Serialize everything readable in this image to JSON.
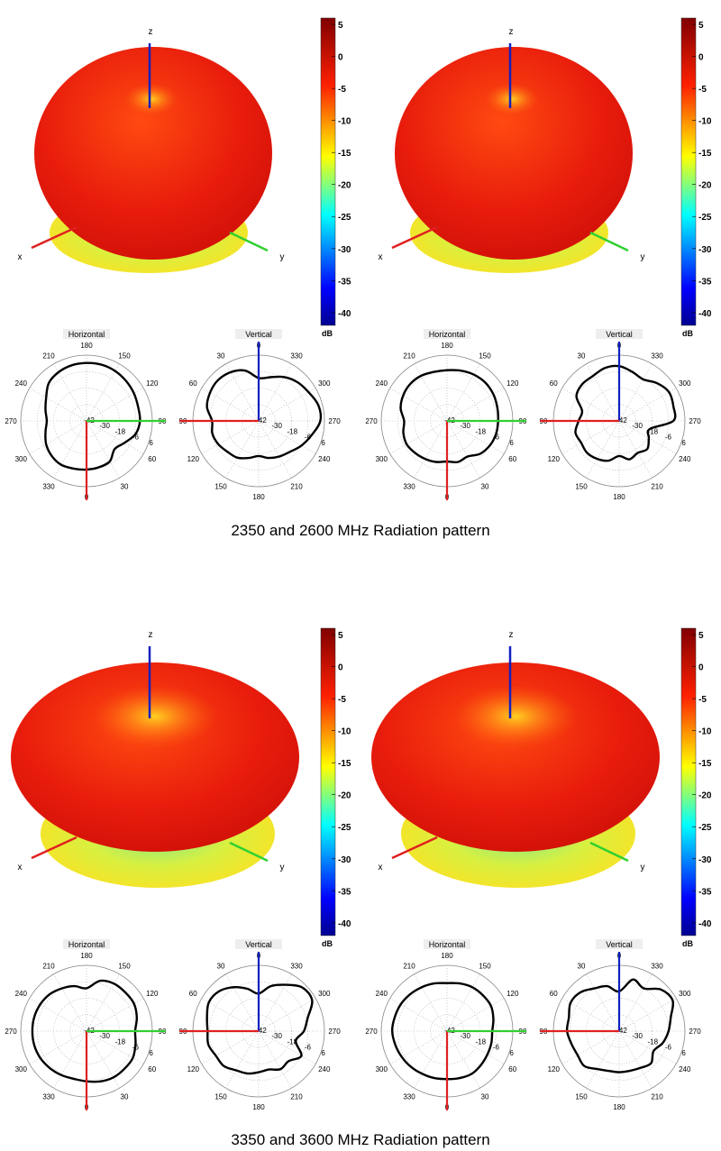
{
  "captions": [
    "2350 and 2600 MHz Radiation pattern",
    "3350 and 3600 MHz Radiation pattern"
  ],
  "colors": {
    "x_axis": "#e02020",
    "y_axis": "#30d030",
    "z_axis": "#1020c0",
    "curve": "#000000"
  },
  "chart_data": [
    {
      "type": "polar-radiation-pattern",
      "frequency_mhz": 2350,
      "axis_labels_3d": {
        "x": "x",
        "y": "y",
        "z": "z"
      },
      "colorbar": {
        "unit": "dB",
        "ticks": [
          "5",
          "0",
          "-5",
          "-10",
          "-15",
          "-20",
          "-25",
          "-30",
          "-35",
          "-40"
        ],
        "range": [
          -42,
          6
        ],
        "colormap": "jet"
      },
      "horizontal": {
        "title": "Horizontal",
        "angle_labels": [
          "180",
          "150",
          "120",
          "90",
          "60",
          "30",
          "0",
          "330",
          "300",
          "270",
          "240",
          "210"
        ],
        "radial_labels": [
          "-42",
          "-30",
          "-18",
          "-6",
          "6"
        ],
        "angles_deg_step": 15,
        "db": [
          -6.5,
          -7,
          -8,
          -13,
          -10,
          -5,
          -3,
          -3,
          -2,
          -1,
          0,
          0.5,
          0.3,
          0,
          -1,
          -3,
          -8,
          -11,
          -13,
          -11,
          -8,
          -6,
          -5,
          -6
        ]
      },
      "vertical": {
        "title": "Vertical",
        "angle_labels": [
          "0",
          "330",
          "300",
          "270",
          "240",
          "210",
          "180",
          "150",
          "120",
          "90",
          "60",
          "30"
        ],
        "radial_labels": [
          "-42",
          "-30",
          "-18",
          "-6",
          "6"
        ],
        "angles_deg_step": 15,
        "db": [
          -10.7,
          -4,
          -1,
          0,
          -1,
          -3,
          -8,
          -7,
          -8,
          -10,
          -11,
          -14,
          -16.4,
          -14,
          -12,
          -10,
          -6,
          -2,
          3,
          3,
          0,
          -2,
          -5,
          -9
        ]
      }
    },
    {
      "type": "polar-radiation-pattern",
      "frequency_mhz": 2600,
      "axis_labels_3d": {
        "x": "x",
        "y": "y",
        "z": "z"
      },
      "colorbar": {
        "unit": "dB",
        "ticks": [
          "5",
          "0",
          "-5",
          "-10",
          "-15",
          "-20",
          "-25",
          "-30",
          "-35",
          "-40"
        ],
        "range": [
          -42,
          6
        ],
        "colormap": "jet"
      },
      "horizontal": {
        "title": "Horizontal",
        "angle_labels": [
          "180",
          "150",
          "120",
          "90",
          "60",
          "30",
          "0",
          "330",
          "300",
          "270",
          "240",
          "210"
        ],
        "radial_labels": [
          "-42",
          "-30",
          "-18",
          "-6",
          "6"
        ],
        "angles_deg_step": 15,
        "db": [
          -12.4,
          -11,
          -12,
          -8,
          -6,
          -5,
          -4.7,
          -4,
          -3,
          -2.5,
          -3,
          -4,
          -5,
          -5,
          -4,
          -4,
          -5,
          -7,
          -10.7,
          -9,
          -8,
          -9,
          -10,
          -11
        ]
      },
      "vertical": {
        "title": "Vertical",
        "angle_labels": [
          "0",
          "330",
          "300",
          "270",
          "240",
          "210",
          "180",
          "150",
          "120",
          "90",
          "60",
          "30"
        ],
        "radial_labels": [
          "-42",
          "-30",
          "-18",
          "-6",
          "6"
        ],
        "angles_deg_step": 15,
        "db": [
          -2,
          -2,
          -4,
          -4,
          -6,
          -14,
          -12.4,
          -9,
          -10,
          -9,
          -10,
          -12,
          -16.4,
          -13,
          -15,
          -13,
          -17,
          -19,
          -2.5,
          -1,
          0,
          -3,
          -7,
          -5
        ]
      }
    },
    {
      "type": "polar-radiation-pattern",
      "frequency_mhz": 3350,
      "axis_labels_3d": {
        "x": "x",
        "y": "y",
        "z": "z"
      },
      "colorbar": {
        "unit": "dB",
        "ticks": [
          "5",
          "0",
          "-5",
          "-10",
          "-15",
          "-20",
          "-25",
          "-30",
          "-35",
          "-40"
        ],
        "range": [
          -42,
          6
        ],
        "colormap": "jet"
      },
      "horizontal": {
        "title": "Horizontal",
        "angle_labels": [
          "180",
          "150",
          "120",
          "90",
          "60",
          "30",
          "0",
          "330",
          "300",
          "270",
          "240",
          "210"
        ],
        "radial_labels": [
          "-42",
          "-30",
          "-18",
          "-6",
          "6"
        ],
        "angles_deg_step": 15,
        "db": [
          -5.4,
          -4,
          -3,
          -3,
          -3,
          -5,
          -6.5,
          -4,
          -2,
          -2,
          -2,
          -4,
          -10.7,
          -8,
          -6,
          -4,
          -3,
          -2.5,
          -2.5,
          -2.5,
          -3,
          -4,
          -5,
          -6
        ]
      },
      "vertical": {
        "title": "Vertical",
        "angle_labels": [
          "0",
          "330",
          "300",
          "270",
          "240",
          "210",
          "180",
          "150",
          "120",
          "90",
          "60",
          "30"
        ],
        "radial_labels": [
          "-42",
          "-30",
          "-18",
          "-6",
          "6"
        ],
        "angles_deg_step": 15,
        "db": [
          -14.6,
          -10,
          -5,
          -1,
          0,
          -3,
          -4.7,
          -4,
          -6,
          -6,
          -9,
          -10,
          -12,
          -13,
          -10,
          -11,
          -6,
          -14,
          -9,
          -5,
          3,
          3,
          -3,
          -8
        ]
      }
    },
    {
      "type": "polar-radiation-pattern",
      "frequency_mhz": 3600,
      "axis_labels_3d": {
        "x": "x",
        "y": "y",
        "z": "z"
      },
      "colorbar": {
        "unit": "dB",
        "ticks": [
          "5",
          "0",
          "-5",
          "-10",
          "-15",
          "-20",
          "-25",
          "-30",
          "-35",
          "-40"
        ],
        "range": [
          -42,
          6
        ],
        "colormap": "jet"
      },
      "horizontal": {
        "title": "Horizontal",
        "angle_labels": [
          "180",
          "150",
          "120",
          "90",
          "60",
          "30",
          "0",
          "330",
          "300",
          "270",
          "240",
          "210"
        ],
        "radial_labels": [
          "-42",
          "-30",
          "-18",
          "-6",
          "6"
        ],
        "angles_deg_step": 15,
        "db": [
          -7,
          -6.5,
          -6,
          -7,
          -8,
          -8.5,
          -9,
          -7,
          -5,
          -5,
          -5,
          -6,
          -7,
          -6,
          -5,
          -4,
          -3,
          -2.5,
          -2,
          -3,
          -4,
          -5,
          -6,
          -6.5
        ]
      },
      "vertical": {
        "title": "Vertical",
        "angle_labels": [
          "0",
          "330",
          "300",
          "270",
          "240",
          "210",
          "180",
          "150",
          "120",
          "90",
          "60",
          "30"
        ],
        "radial_labels": [
          "-42",
          "-30",
          "-18",
          "-6",
          "6"
        ],
        "angles_deg_step": 15,
        "db": [
          -13,
          -8,
          -6,
          -2,
          -1,
          -4,
          -4,
          -6,
          -7,
          -6,
          -10,
          -12,
          -12,
          -12,
          -11,
          -9,
          -13,
          -9,
          -6,
          -3,
          3,
          1,
          -6,
          -3
        ]
      }
    }
  ]
}
